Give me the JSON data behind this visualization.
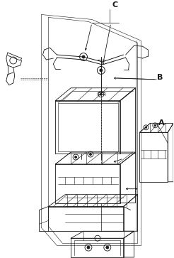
{
  "background_color": "#ffffff",
  "fig_width": 2.46,
  "fig_height": 3.63,
  "dpi": 100,
  "label_A": "A",
  "label_B": "B",
  "label_C": "C",
  "line_color": "#1a1a1a",
  "label_fontsize": 8,
  "label_fontweight": "bold",
  "lw_main": 0.6,
  "lw_thin": 0.4
}
